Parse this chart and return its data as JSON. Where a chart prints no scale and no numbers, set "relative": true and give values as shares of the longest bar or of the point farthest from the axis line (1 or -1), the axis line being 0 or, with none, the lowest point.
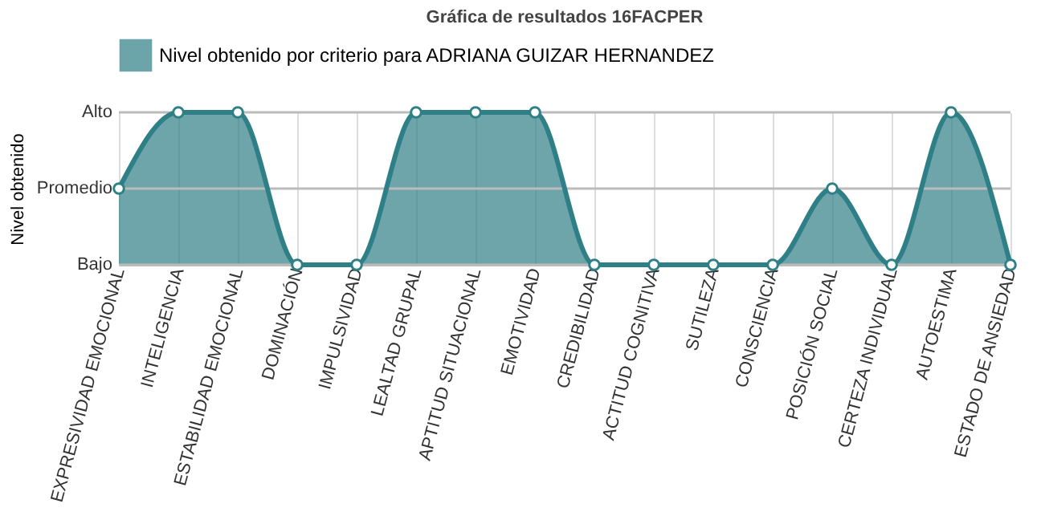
{
  "chart_data": {
    "type": "area",
    "title": "Gráfica de resultados 16FACPER",
    "ylabel": "Nivel obtenido",
    "categories": [
      "EXPRESIVIDAD EMOCIONAL",
      "INTELIGENCIA",
      "ESTABILIDAD EMOCIONAL",
      "DOMINACIÓN",
      "IMPULSIVIDAD",
      "LEALTAD GRUPAL",
      "APTITUD SITUACIONAL",
      "EMOTIVIDAD",
      "CREDIBILIDAD",
      "ACTITUD COGNITIVA",
      "SUTILEZA",
      "CONSCIENCIA",
      "POSICIÓN SOCIAL",
      "CERTEZA INDIVIDUAL",
      "AUTOESTIMA",
      "ESTADO DE ANSIEDAD"
    ],
    "series": [
      {
        "name": "Nivel obtenido por criterio para ADRIANA GUIZAR HERNANDEZ",
        "color": "#2f7f86",
        "values": [
          0.5,
          1,
          1,
          0,
          0,
          1,
          1,
          1,
          0,
          0,
          0,
          0,
          0.5,
          0,
          1,
          0
        ]
      }
    ],
    "relative": true,
    "ref_lines": [
      {
        "axis": "y",
        "value": 0,
        "label": "Bajo"
      },
      {
        "axis": "y",
        "value": 0.5,
        "label": "Promedio"
      },
      {
        "axis": "y",
        "value": 1,
        "label": "Alto"
      }
    ],
    "grid": "x",
    "legend": "top",
    "marker": "circle"
  }
}
